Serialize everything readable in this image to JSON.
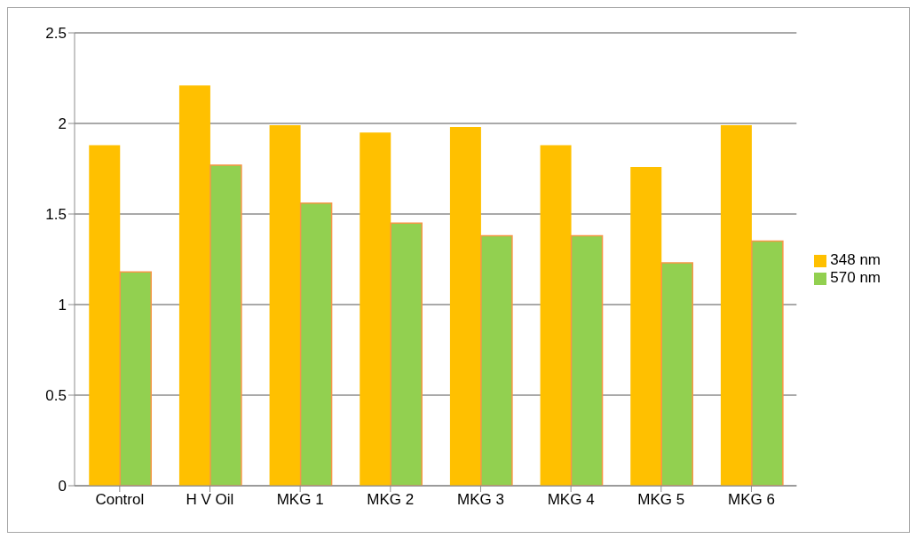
{
  "chart_data": {
    "type": "bar",
    "categories": [
      "Control",
      "H V Oil",
      "MKG 1",
      "MKG 2",
      "MKG 3",
      "MKG 4",
      "MKG 5",
      "MKG 6"
    ],
    "series": [
      {
        "name": "348 nm",
        "color": "#ffc000",
        "values": [
          1.88,
          2.21,
          1.99,
          1.95,
          1.98,
          1.88,
          1.76,
          1.99
        ]
      },
      {
        "name": "570 nm",
        "color": "#92d050",
        "values": [
          1.18,
          1.77,
          1.56,
          1.45,
          1.38,
          1.38,
          1.23,
          1.35
        ]
      }
    ],
    "ylim": [
      0,
      2.5
    ],
    "yticks": [
      0,
      0.5,
      1,
      1.5,
      2,
      2.5
    ],
    "grid": "y",
    "legend": "right"
  }
}
